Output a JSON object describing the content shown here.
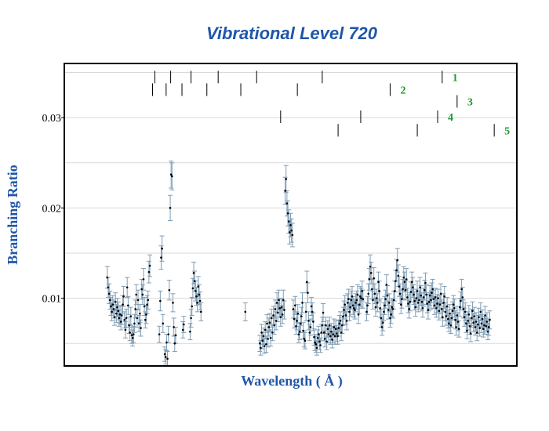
{
  "chart_data": {
    "type": "scatter",
    "title": "Vibrational Level 720",
    "xlabel": "Wavelength ( Å )",
    "ylabel": "Branching Ratio",
    "xlim": [
      0,
      1000
    ],
    "ylim": [
      0.0025,
      0.036
    ],
    "yticks": [
      {
        "value": 0.03,
        "label": "0.03"
      },
      {
        "value": 0.02,
        "label": "0.02"
      },
      {
        "value": 0.01,
        "label": "0.01"
      }
    ],
    "gridlines_y": [
      0.005,
      0.01,
      0.015,
      0.02,
      0.025,
      0.03,
      0.035
    ],
    "grid": true,
    "error_bar_color": "#7f9db5",
    "point_color": "#000000",
    "title_color": "#1f56a8",
    "series_label_color": "#1f9a2a",
    "marker_rows": [
      {
        "label": "1",
        "y": 0.0345,
        "positions": [
          200,
          235,
          280,
          340,
          425,
          570,
          835
        ]
      },
      {
        "label": "2",
        "y": 0.0331,
        "positions": [
          195,
          225,
          260,
          315,
          390,
          515,
          720
        ]
      },
      {
        "label": "3",
        "y": 0.0318,
        "positions": [
          868
        ]
      },
      {
        "label": "4",
        "y": 0.0301,
        "positions": [
          478,
          655,
          825
        ]
      },
      {
        "label": "5",
        "y": 0.0286,
        "positions": [
          605,
          780,
          950
        ]
      }
    ],
    "series": [
      {
        "x": [
          95,
          97,
          99,
          101,
          103,
          105,
          107,
          109,
          111,
          113,
          115,
          117,
          119,
          121,
          123,
          125,
          127,
          129,
          131,
          133,
          135,
          137,
          139,
          141,
          143,
          145,
          147,
          149,
          151,
          153,
          155,
          157,
          159,
          161,
          163,
          165,
          167,
          169,
          171,
          173,
          175,
          177,
          179,
          181,
          183,
          185,
          187,
          189
        ],
        "y": [
          0.0123,
          0.0112,
          0.0105,
          0.0098,
          0.0091,
          0.0085,
          0.0093,
          0.0088,
          0.0079,
          0.0096,
          0.0083,
          0.009,
          0.0086,
          0.0078,
          0.0082,
          0.0074,
          0.0081,
          0.0093,
          0.0102,
          0.0076,
          0.0065,
          0.0078,
          0.0112,
          0.0092,
          0.007,
          0.0062,
          0.008,
          0.0059,
          0.0056,
          0.006,
          0.0072,
          0.0088,
          0.0104,
          0.0078,
          0.0098,
          0.0072,
          0.0083,
          0.0067,
          0.011,
          0.0104,
          0.0121,
          0.0091,
          0.0076,
          0.0082,
          0.0093,
          0.0098,
          0.0129,
          0.0136
        ],
        "err": [
          0.0012,
          0.0011,
          0.0011,
          0.001,
          0.001,
          0.001,
          0.001,
          0.001,
          0.0009,
          0.001,
          0.001,
          0.001,
          0.001,
          0.0009,
          0.001,
          0.0009,
          0.001,
          0.001,
          0.0011,
          0.0009,
          0.0009,
          0.001,
          0.0011,
          0.001,
          0.0009,
          0.0009,
          0.001,
          0.0009,
          0.0009,
          0.0009,
          0.001,
          0.001,
          0.0011,
          0.001,
          0.0011,
          0.0009,
          0.001,
          0.0009,
          0.0011,
          0.0011,
          0.0012,
          0.001,
          0.0009,
          0.001,
          0.001,
          0.001,
          0.0012,
          0.0012
        ]
      },
      {
        "x": [
          210,
          212,
          214,
          216,
          218,
          222,
          224,
          226,
          228,
          230,
          232,
          234,
          236,
          238,
          240,
          242,
          244,
          246
        ],
        "y": [
          0.006,
          0.0097,
          0.0145,
          0.0155,
          0.0072,
          0.0038,
          0.0035,
          0.0051,
          0.0033,
          0.006,
          0.0109,
          0.02,
          0.0237,
          0.0235,
          0.0095,
          0.0068,
          0.005,
          0.0059
        ],
        "err": [
          0.0009,
          0.0011,
          0.0013,
          0.0014,
          0.001,
          0.0008,
          0.0008,
          0.0009,
          0.0008,
          0.0009,
          0.0011,
          0.0014,
          0.0015,
          0.0015,
          0.001,
          0.001,
          0.0009,
          0.0009
        ]
      },
      {
        "x": [
          262,
          264,
          278,
          280,
          282,
          284,
          286,
          288,
          290,
          292,
          294,
          296,
          298,
          300,
          302
        ],
        "y": [
          0.0065,
          0.0071,
          0.0063,
          0.0078,
          0.0091,
          0.0111,
          0.0128,
          0.0119,
          0.0108,
          0.0102,
          0.0095,
          0.0113,
          0.0104,
          0.0097,
          0.0085
        ],
        "err": [
          0.0009,
          0.0009,
          0.0009,
          0.001,
          0.001,
          0.0011,
          0.0012,
          0.0011,
          0.0011,
          0.001,
          0.001,
          0.0011,
          0.0011,
          0.001,
          0.001
        ]
      },
      {
        "x": [
          400,
          432,
          434,
          436,
          438,
          440,
          442,
          444,
          446,
          448,
          450,
          452,
          454,
          456,
          458,
          460,
          462,
          464,
          466,
          468,
          470,
          472,
          474,
          476,
          478,
          480,
          482,
          484,
          486,
          488,
          490,
          492,
          494,
          496,
          498,
          500,
          502,
          504,
          506,
          508,
          510,
          512,
          514,
          516,
          518,
          520,
          522,
          524,
          526,
          528,
          530
        ],
        "y": [
          0.0085,
          0.005,
          0.0045,
          0.0062,
          0.0053,
          0.0058,
          0.0047,
          0.0065,
          0.0049,
          0.0072,
          0.0055,
          0.0068,
          0.0073,
          0.0056,
          0.0078,
          0.0062,
          0.0081,
          0.007,
          0.0088,
          0.0075,
          0.0095,
          0.0084,
          0.0098,
          0.0089,
          0.0079,
          0.009,
          0.0082,
          0.0098,
          0.0087,
          0.0219,
          0.0232,
          0.0205,
          0.0194,
          0.0185,
          0.0173,
          0.0181,
          0.0175,
          0.017,
          0.0088,
          0.0077,
          0.0092,
          0.0069,
          0.0075,
          0.0083,
          0.006,
          0.0063,
          0.0072,
          0.008,
          0.0095,
          0.0064,
          0.0055
        ],
        "err": [
          0.001,
          0.0009,
          0.0008,
          0.0009,
          0.0009,
          0.0009,
          0.0008,
          0.0009,
          0.0009,
          0.001,
          0.0009,
          0.001,
          0.001,
          0.0009,
          0.001,
          0.0009,
          0.001,
          0.001,
          0.001,
          0.001,
          0.0011,
          0.001,
          0.0011,
          0.001,
          0.001,
          0.001,
          0.001,
          0.0011,
          0.001,
          0.0015,
          0.0015,
          0.0014,
          0.0014,
          0.0013,
          0.0013,
          0.0013,
          0.0013,
          0.0013,
          0.001,
          0.001,
          0.001,
          0.0009,
          0.001,
          0.001,
          0.0009,
          0.0009,
          0.001,
          0.001,
          0.0011,
          0.0009,
          0.0009
        ]
      },
      {
        "x": [
          532,
          534,
          536,
          538,
          540,
          542,
          544,
          546,
          548,
          550,
          552,
          554,
          556,
          558,
          560,
          562,
          564,
          566,
          568,
          570,
          572,
          574,
          576,
          578,
          580,
          582,
          584,
          586,
          588,
          590,
          592,
          594,
          596,
          598,
          600,
          602,
          604,
          606,
          608,
          610,
          612,
          614,
          616,
          618,
          620,
          622,
          624,
          626,
          628,
          630,
          632,
          634,
          636,
          638,
          640,
          642,
          644,
          646,
          648,
          650,
          652,
          654,
          656,
          658,
          660
        ],
        "y": [
          0.0053,
          0.0085,
          0.0118,
          0.0106,
          0.0075,
          0.0062,
          0.0068,
          0.0091,
          0.0085,
          0.0074,
          0.0057,
          0.0051,
          0.0049,
          0.0045,
          0.0056,
          0.006,
          0.0052,
          0.0048,
          0.0062,
          0.007,
          0.0084,
          0.0062,
          0.0055,
          0.007,
          0.0052,
          0.0066,
          0.006,
          0.007,
          0.0058,
          0.0063,
          0.0054,
          0.006,
          0.0068,
          0.0058,
          0.0066,
          0.0061,
          0.0058,
          0.0067,
          0.0072,
          0.0075,
          0.0062,
          0.007,
          0.008,
          0.0087,
          0.0093,
          0.0081,
          0.0075,
          0.0095,
          0.0099,
          0.0085,
          0.009,
          0.0098,
          0.0102,
          0.0092,
          0.0089,
          0.0087,
          0.0095,
          0.0098,
          0.0104,
          0.0082,
          0.0093,
          0.0102,
          0.01,
          0.0108,
          0.0099
        ],
        "err": [
          0.0009,
          0.001,
          0.0012,
          0.0011,
          0.001,
          0.0009,
          0.0009,
          0.001,
          0.001,
          0.001,
          0.0009,
          0.0009,
          0.0009,
          0.0008,
          0.0009,
          0.0009,
          0.0009,
          0.0008,
          0.0009,
          0.0009,
          0.001,
          0.0009,
          0.0009,
          0.0009,
          0.0009,
          0.0009,
          0.0009,
          0.0009,
          0.0009,
          0.0009,
          0.0009,
          0.0009,
          0.0009,
          0.0009,
          0.0009,
          0.0009,
          0.0009,
          0.0009,
          0.0009,
          0.001,
          0.0009,
          0.0009,
          0.001,
          0.001,
          0.001,
          0.001,
          0.001,
          0.001,
          0.0011,
          0.001,
          0.001,
          0.001,
          0.0011,
          0.001,
          0.001,
          0.001,
          0.001,
          0.001,
          0.0011,
          0.001,
          0.001,
          0.0011,
          0.0011,
          0.0011,
          0.001
        ]
      },
      {
        "x": [
          668,
          670,
          672,
          674,
          676,
          678,
          680,
          682,
          684,
          686,
          688,
          690,
          692,
          694,
          696,
          698,
          700,
          702,
          704,
          706,
          708,
          710,
          712,
          714,
          716,
          718,
          720,
          722,
          724,
          726,
          728,
          730,
          732,
          734,
          736,
          738,
          740,
          742,
          744,
          746,
          748,
          750,
          752,
          754,
          756,
          758,
          760,
          762,
          764,
          766,
          768,
          770
        ],
        "y": [
          0.0085,
          0.0092,
          0.0105,
          0.0121,
          0.0135,
          0.0128,
          0.011,
          0.0098,
          0.0122,
          0.0105,
          0.009,
          0.01,
          0.0095,
          0.0118,
          0.0108,
          0.0089,
          0.0078,
          0.0068,
          0.0073,
          0.0085,
          0.0092,
          0.0099,
          0.0115,
          0.0103,
          0.0087,
          0.0095,
          0.0078,
          0.0082,
          0.009,
          0.0088,
          0.0098,
          0.0108,
          0.0119,
          0.0131,
          0.0142,
          0.0125,
          0.0113,
          0.0105,
          0.0093,
          0.0099,
          0.011,
          0.0123,
          0.0118,
          0.0109,
          0.0121,
          0.0101,
          0.0094,
          0.0088,
          0.0096,
          0.0107,
          0.0118,
          0.0112
        ],
        "err": [
          0.001,
          0.001,
          0.0011,
          0.0012,
          0.0013,
          0.0012,
          0.0011,
          0.001,
          0.0012,
          0.0011,
          0.001,
          0.001,
          0.001,
          0.0011,
          0.0011,
          0.001,
          0.001,
          0.0009,
          0.0009,
          0.001,
          0.001,
          0.001,
          0.0011,
          0.0011,
          0.001,
          0.001,
          0.001,
          0.001,
          0.001,
          0.001,
          0.001,
          0.0011,
          0.0012,
          0.0012,
          0.0013,
          0.0012,
          0.0011,
          0.0011,
          0.001,
          0.001,
          0.0011,
          0.0012,
          0.0011,
          0.0011,
          0.0012,
          0.001,
          0.001,
          0.001,
          0.001,
          0.0011,
          0.0011,
          0.0011
        ]
      },
      {
        "x": [
          772,
          774,
          776,
          778,
          780,
          782,
          784,
          786,
          788,
          790,
          792,
          794,
          796,
          798,
          800,
          802,
          804,
          806,
          808,
          810,
          812,
          814,
          816,
          818,
          820,
          822,
          824,
          826,
          828,
          830,
          832,
          834,
          836,
          838,
          840,
          842,
          844,
          846,
          848,
          850,
          852,
          854,
          856,
          858,
          860,
          862,
          864,
          866,
          868,
          870,
          872,
          874,
          876,
          878,
          880,
          882,
          884,
          886,
          888,
          890,
          892,
          894,
          896,
          898,
          900,
          902,
          904,
          906,
          908,
          910,
          912,
          914,
          916,
          918,
          920,
          922,
          924,
          926,
          928,
          930,
          932,
          934,
          936,
          938,
          940
        ],
        "y": [
          0.0104,
          0.0097,
          0.009,
          0.01,
          0.0108,
          0.0095,
          0.0098,
          0.0112,
          0.0103,
          0.0096,
          0.0089,
          0.0101,
          0.0109,
          0.0117,
          0.0104,
          0.0094,
          0.0087,
          0.0096,
          0.0103,
          0.0098,
          0.0106,
          0.011,
          0.0099,
          0.0092,
          0.0101,
          0.0089,
          0.0094,
          0.01,
          0.0086,
          0.0093,
          0.0105,
          0.0088,
          0.0079,
          0.0095,
          0.0102,
          0.0085,
          0.008,
          0.0091,
          0.0077,
          0.0072,
          0.0083,
          0.007,
          0.0078,
          0.0086,
          0.0093,
          0.0089,
          0.0076,
          0.0068,
          0.0081,
          0.0074,
          0.0066,
          0.009,
          0.0097,
          0.011,
          0.0101,
          0.0088,
          0.0079,
          0.0085,
          0.0072,
          0.0064,
          0.0075,
          0.0082,
          0.0069,
          0.0061,
          0.0078,
          0.0086,
          0.0073,
          0.008,
          0.0068,
          0.0074,
          0.0062,
          0.0071,
          0.0079,
          0.0067,
          0.0085,
          0.0072,
          0.0077,
          0.0066,
          0.007,
          0.0081,
          0.0069,
          0.0074,
          0.0063,
          0.0068,
          0.0076
        ],
        "err": [
          0.0011,
          0.001,
          0.001,
          0.001,
          0.0011,
          0.001,
          0.001,
          0.0011,
          0.0011,
          0.001,
          0.001,
          0.001,
          0.0011,
          0.0011,
          0.0011,
          0.001,
          0.001,
          0.001,
          0.0011,
          0.001,
          0.0011,
          0.0011,
          0.001,
          0.001,
          0.001,
          0.001,
          0.001,
          0.001,
          0.001,
          0.001,
          0.0011,
          0.001,
          0.001,
          0.001,
          0.0011,
          0.001,
          0.001,
          0.001,
          0.001,
          0.0009,
          0.001,
          0.0009,
          0.001,
          0.001,
          0.001,
          0.001,
          0.001,
          0.0009,
          0.001,
          0.001,
          0.0009,
          0.001,
          0.001,
          0.0011,
          0.0011,
          0.001,
          0.001,
          0.001,
          0.001,
          0.0009,
          0.001,
          0.001,
          0.0009,
          0.0009,
          0.001,
          0.001,
          0.001,
          0.001,
          0.0009,
          0.001,
          0.0009,
          0.001,
          0.001,
          0.0009,
          0.001,
          0.001,
          0.001,
          0.0009,
          0.001,
          0.001,
          0.0009,
          0.001,
          0.0009,
          0.0009,
          0.001
        ]
      }
    ]
  }
}
